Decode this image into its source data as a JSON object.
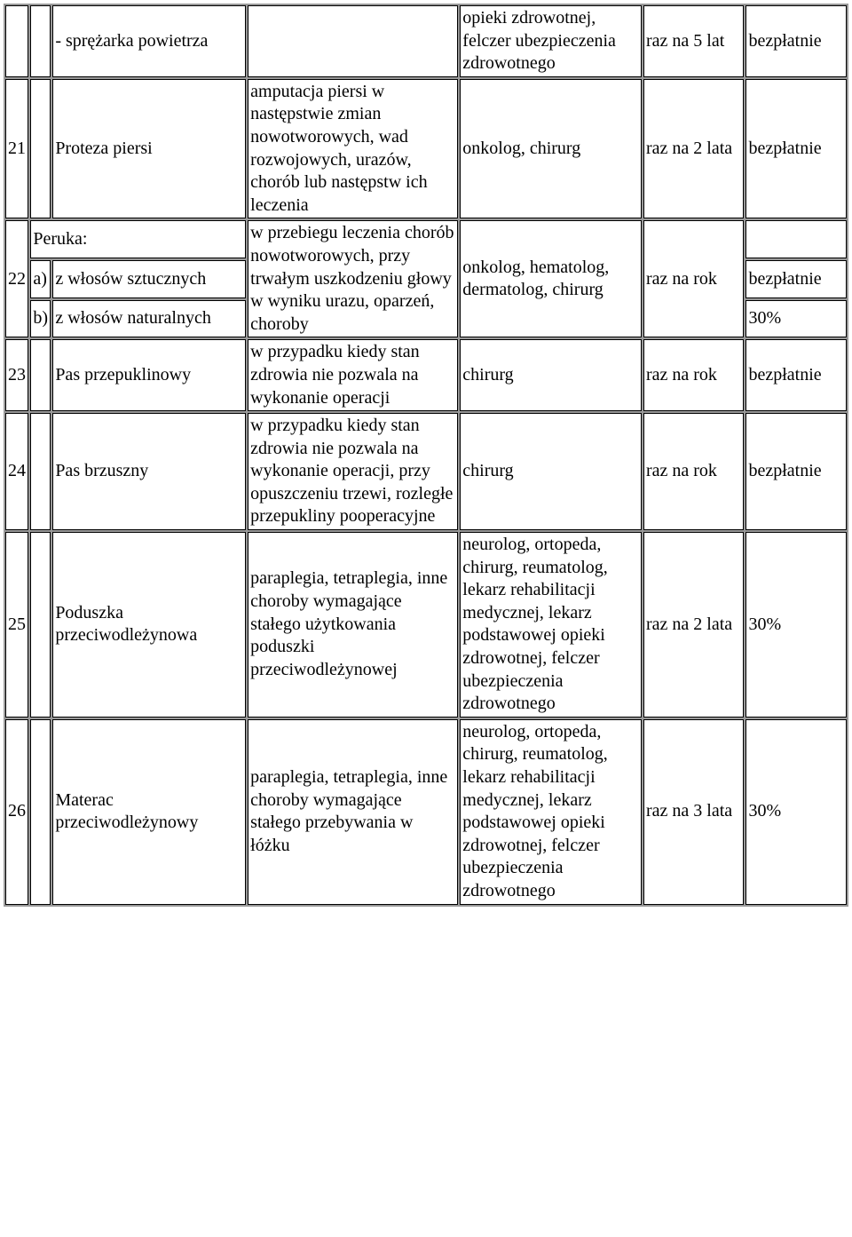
{
  "rows": {
    "r20": {
      "num": "",
      "sub": "",
      "name": "- sprężarka powietrza",
      "ind": "",
      "doc": "opieki zdrowotnej, felczer ubezpieczenia zdrowotnego",
      "freq": "raz na 5 lat",
      "pay": "bezpłatnie"
    },
    "r21": {
      "num": "21",
      "sub": "",
      "name": "Proteza piersi",
      "ind": "amputacja piersi w następstwie zmian nowotworowych, wad rozwojowych, urazów, chorób lub następstw ich leczenia",
      "doc": "onkolog, chirurg",
      "freq": "raz na 2 lata",
      "pay": "bezpłatnie"
    },
    "r22": {
      "num": "22",
      "head": "Peruka:",
      "subA": "a)",
      "nameA": "z włosów sztucznych",
      "subB": "b)",
      "nameB": "z włosów naturalnych",
      "ind": "w przebiegu leczenia chorób nowotworowych, przy trwałym uszkodzeniu głowy w wyniku urazu, oparzeń, choroby",
      "doc": "onkolog, hematolog, dermatolog, chirurg",
      "freq": "raz na rok",
      "payA": "bezpłatnie",
      "payB": "30%"
    },
    "r23": {
      "num": "23",
      "sub": "",
      "name": "Pas przepuklinowy",
      "ind": "w przypadku kiedy stan zdrowia nie pozwala na wykonanie operacji",
      "doc": "chirurg",
      "freq": "raz na rok",
      "pay": "bezpłatnie"
    },
    "r24": {
      "num": "24",
      "sub": "",
      "name": "Pas brzuszny",
      "ind": "w przypadku kiedy stan zdrowia nie pozwala na wykonanie operacji, przy opuszczeniu trzewi, rozległe przepukliny pooperacyjne",
      "doc": "chirurg",
      "freq": "raz na rok",
      "pay": "bezpłatnie"
    },
    "r25": {
      "num": "25",
      "sub": "",
      "name": "Poduszka przeciwodleżynowa",
      "ind": "paraplegia, tetraplegia, inne choroby wymagające stałego użytkowania poduszki przeciwodleżynowej",
      "doc": "neurolog, ortopeda, chirurg, reumatolog, lekarz rehabilitacji medycznej, lekarz podstawowej opieki zdrowotnej, felczer ubezpieczenia zdrowotnego",
      "freq": "raz na 2 lata",
      "pay": "30%"
    },
    "r26": {
      "num": "26",
      "sub": "",
      "name": "Materac przeciwodleżynowy",
      "ind": "paraplegia, tetraplegia, inne choroby wymagające stałego przebywania w łóżku",
      "doc": "neurolog, ortopeda, chirurg, reumatolog, lekarz rehabilitacji medycznej, lekarz podstawowej opieki zdrowotnej, felczer ubezpieczenia zdrowotnego",
      "freq": "raz na 3 lata",
      "pay": "30%"
    }
  }
}
